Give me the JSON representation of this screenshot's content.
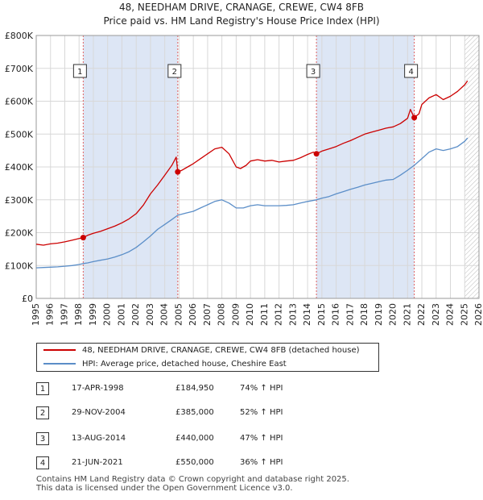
{
  "title_line1": "48, NEEDHAM DRIVE, CRANAGE, CREWE, CW4 8FB",
  "title_line2": "Price paid vs. HM Land Registry's House Price Index (HPI)",
  "legend": {
    "property": "48, NEEDHAM DRIVE, CRANAGE, CREWE, CW4 8FB (detached house)",
    "hpi": "HPI: Average price, detached house, Cheshire East"
  },
  "colors": {
    "property": "#cc0000",
    "hpi": "#5b8ec8",
    "shade": "#dde6f5",
    "sale_line": "#e06060"
  },
  "sales": [
    {
      "num": "1",
      "date": "17-APR-1998",
      "price": "£184,950",
      "hpi": "74% ↑ HPI"
    },
    {
      "num": "2",
      "date": "29-NOV-2004",
      "price": "£385,000",
      "hpi": "52% ↑ HPI"
    },
    {
      "num": "3",
      "date": "13-AUG-2014",
      "price": "£440,000",
      "hpi": "47% ↑ HPI"
    },
    {
      "num": "4",
      "date": "21-JUN-2021",
      "price": "£550,000",
      "hpi": "36% ↑ HPI"
    }
  ],
  "footer_line1": "Contains HM Land Registry data © Crown copyright and database right 2025.",
  "footer_line2": "This data is licensed under the Open Government Licence v3.0.",
  "chart_data": {
    "type": "line",
    "title": "48, NEEDHAM DRIVE, CRANAGE, CREWE, CW4 8FB — Price paid vs. HM Land Registry's House Price Index (HPI)",
    "xlim": [
      1995,
      2026
    ],
    "ylim": [
      0,
      800000
    ],
    "x_ticks": [
      "1995",
      "1996",
      "1997",
      "1998",
      "1999",
      "2000",
      "2001",
      "2002",
      "2003",
      "2004",
      "2005",
      "2006",
      "2007",
      "2008",
      "2009",
      "2010",
      "2011",
      "2012",
      "2013",
      "2014",
      "2015",
      "2016",
      "2017",
      "2018",
      "2019",
      "2020",
      "2021",
      "2022",
      "2023",
      "2024",
      "2025",
      "2026"
    ],
    "y_ticks": [
      {
        "value": 0,
        "label": "£0"
      },
      {
        "value": 100000,
        "label": "£100K"
      },
      {
        "value": 200000,
        "label": "£200K"
      },
      {
        "value": 300000,
        "label": "£300K"
      },
      {
        "value": 400000,
        "label": "£400K"
      },
      {
        "value": 500000,
        "label": "£500K"
      },
      {
        "value": 600000,
        "label": "£600K"
      },
      {
        "value": 700000,
        "label": "£700K"
      },
      {
        "value": 800000,
        "label": "£800K"
      }
    ],
    "shaded_periods": [
      [
        1998.29,
        2004.91
      ],
      [
        2014.62,
        2021.47
      ]
    ],
    "forecast_from": 2025.0,
    "sale_markers": [
      {
        "label": "1",
        "x": 1998.29,
        "y": 184950
      },
      {
        "label": "2",
        "x": 2004.91,
        "y": 385000
      },
      {
        "label": "3",
        "x": 2014.62,
        "y": 440000
      },
      {
        "label": "4",
        "x": 2021.47,
        "y": 550000
      }
    ],
    "series": [
      {
        "name": "48, NEEDHAM DRIVE, CRANAGE, CREWE, CW4 8FB (detached house)",
        "x": [
          1995.0,
          1995.5,
          1996.0,
          1996.5,
          1997.0,
          1997.5,
          1998.0,
          1998.29,
          1998.6,
          1999.0,
          1999.5,
          2000.0,
          2000.5,
          2001.0,
          2001.5,
          2002.0,
          2002.5,
          2003.0,
          2003.5,
          2004.0,
          2004.5,
          2004.8,
          2004.91,
          2005.2,
          2005.6,
          2006.0,
          2006.5,
          2007.0,
          2007.5,
          2008.0,
          2008.5,
          2009.0,
          2009.3,
          2009.7,
          2010.0,
          2010.5,
          2011.0,
          2011.5,
          2012.0,
          2012.5,
          2013.0,
          2013.5,
          2014.0,
          2014.4,
          2014.62,
          2015.0,
          2015.5,
          2016.0,
          2016.5,
          2017.0,
          2017.5,
          2018.0,
          2018.5,
          2019.0,
          2019.5,
          2020.0,
          2020.5,
          2021.0,
          2021.2,
          2021.47,
          2021.8,
          2022.0,
          2022.5,
          2023.0,
          2023.5,
          2024.0,
          2024.5,
          2025.0,
          2025.2
        ],
        "values": [
          165000,
          162000,
          166000,
          168000,
          172000,
          177000,
          182000,
          184950,
          192000,
          198000,
          204000,
          212000,
          220000,
          230000,
          242000,
          258000,
          284000,
          318000,
          345000,
          375000,
          405000,
          430000,
          385000,
          390000,
          400000,
          410000,
          425000,
          440000,
          455000,
          460000,
          440000,
          400000,
          395000,
          405000,
          418000,
          422000,
          418000,
          420000,
          415000,
          418000,
          420000,
          428000,
          438000,
          445000,
          440000,
          448000,
          455000,
          462000,
          472000,
          480000,
          490000,
          500000,
          506000,
          512000,
          518000,
          522000,
          532000,
          548000,
          575000,
          550000,
          562000,
          590000,
          610000,
          620000,
          605000,
          615000,
          630000,
          650000,
          662000
        ]
      },
      {
        "name": "HPI: Average price, detached house, Cheshire East",
        "x": [
          1995.0,
          1995.5,
          1996.0,
          1996.5,
          1997.0,
          1997.5,
          1998.0,
          1998.29,
          1998.6,
          1999.0,
          1999.5,
          2000.0,
          2000.5,
          2001.0,
          2001.5,
          2002.0,
          2002.5,
          2003.0,
          2003.5,
          2004.0,
          2004.5,
          2004.91,
          2005.5,
          2006.0,
          2006.5,
          2007.0,
          2007.5,
          2008.0,
          2008.5,
          2009.0,
          2009.5,
          2010.0,
          2010.5,
          2011.0,
          2011.5,
          2012.0,
          2012.5,
          2013.0,
          2013.5,
          2014.0,
          2014.62,
          2015.0,
          2015.5,
          2016.0,
          2016.5,
          2017.0,
          2017.5,
          2018.0,
          2018.5,
          2019.0,
          2019.5,
          2020.0,
          2020.5,
          2021.0,
          2021.47,
          2022.0,
          2022.5,
          2023.0,
          2023.5,
          2024.0,
          2024.5,
          2025.0,
          2025.2
        ],
        "values": [
          93000,
          94000,
          95000,
          96000,
          98000,
          100000,
          103000,
          106000,
          108000,
          112000,
          116000,
          120000,
          126000,
          133000,
          142000,
          155000,
          172000,
          190000,
          210000,
          225000,
          240000,
          253000,
          260000,
          265000,
          275000,
          285000,
          295000,
          300000,
          290000,
          275000,
          275000,
          282000,
          285000,
          282000,
          282000,
          282000,
          283000,
          285000,
          290000,
          295000,
          300000,
          305000,
          310000,
          318000,
          325000,
          332000,
          338000,
          345000,
          350000,
          355000,
          360000,
          362000,
          375000,
          390000,
          405000,
          425000,
          445000,
          455000,
          450000,
          455000,
          462000,
          478000,
          488000
        ]
      }
    ]
  }
}
